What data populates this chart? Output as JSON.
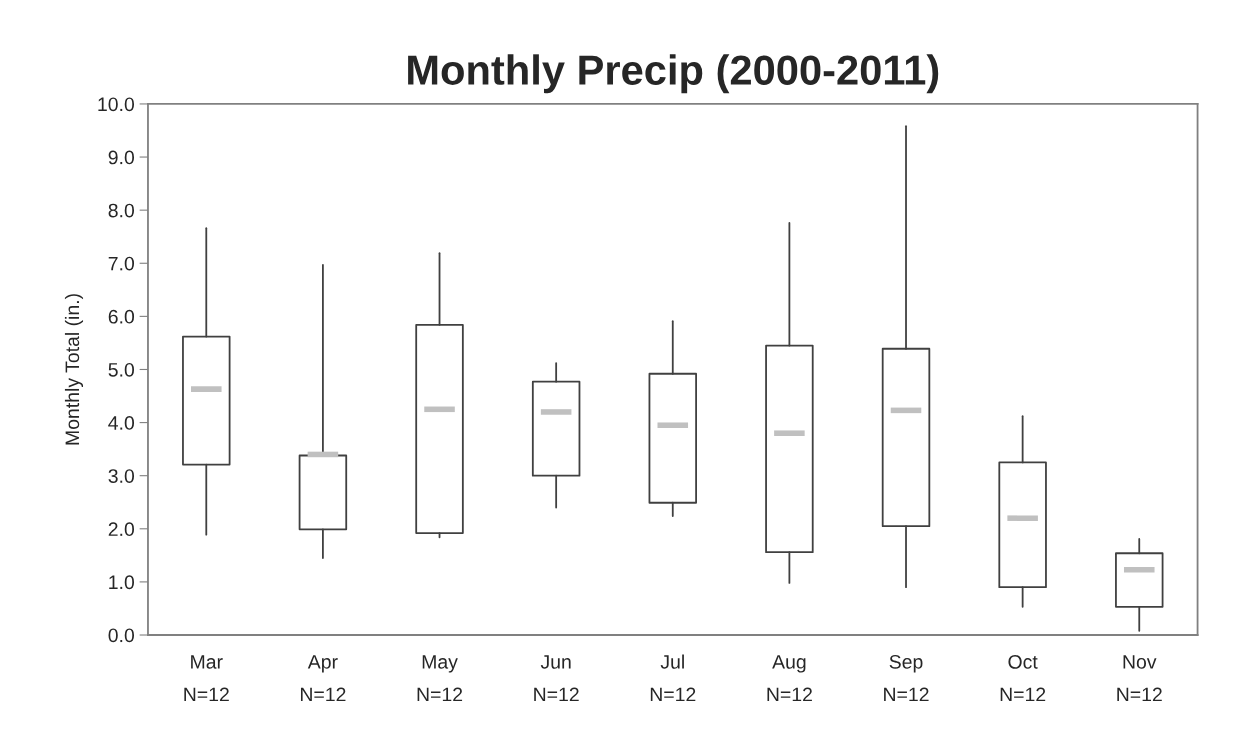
{
  "chart_data": {
    "type": "box",
    "title": "Monthly Precip (2000-2011)",
    "ylabel": "Monthly Total (in.)",
    "categories": [
      "Mar",
      "Apr",
      "May",
      "Jun",
      "Jul",
      "Aug",
      "Sep",
      "Oct",
      "Nov"
    ],
    "boxes": [
      {
        "low": 1.89,
        "q1": 3.21,
        "q3": 5.62,
        "high": 7.66,
        "mean": 4.63
      },
      {
        "low": 1.45,
        "q1": 1.99,
        "q3": 3.38,
        "high": 6.97,
        "mean": 3.4
      },
      {
        "low": 1.84,
        "q1": 1.92,
        "q3": 5.84,
        "high": 7.19,
        "mean": 4.25
      },
      {
        "low": 2.4,
        "q1": 3.0,
        "q3": 4.77,
        "high": 5.12,
        "mean": 4.2
      },
      {
        "low": 2.24,
        "q1": 2.49,
        "q3": 4.92,
        "high": 5.91,
        "mean": 3.95
      },
      {
        "low": 0.98,
        "q1": 1.56,
        "q3": 5.45,
        "high": 7.76,
        "mean": 3.8
      },
      {
        "low": 0.9,
        "q1": 2.05,
        "q3": 5.39,
        "high": 9.58,
        "mean": 4.23
      },
      {
        "low": 0.53,
        "q1": 0.9,
        "q3": 3.25,
        "high": 4.12,
        "mean": 2.2
      },
      {
        "low": 0.08,
        "q1": 0.53,
        "q3": 1.54,
        "high": 1.81,
        "mean": 1.23
      }
    ],
    "color": "#404040",
    "ylim": [
      0,
      10
    ],
    "yticks": [
      {
        "value": 0,
        "label": "0.0"
      },
      {
        "value": 1,
        "label": "1.0"
      },
      {
        "value": 2,
        "label": "2.0"
      },
      {
        "value": 3,
        "label": "3.0"
      },
      {
        "value": 4,
        "label": "4.0"
      },
      {
        "value": 5,
        "label": "5.0"
      },
      {
        "value": 6,
        "label": "6.0"
      },
      {
        "value": 7,
        "label": "7.0"
      },
      {
        "value": 8,
        "label": "8.0"
      },
      {
        "value": 9,
        "label": "9.0"
      },
      {
        "value": 10,
        "label": "10.0"
      }
    ],
    "annotations": [
      "N=12",
      "N=12",
      "N=12",
      "N=12",
      "N=12",
      "N=12",
      "N=12",
      "N=12",
      "N=12"
    ],
    "grid": false,
    "legend": false
  }
}
